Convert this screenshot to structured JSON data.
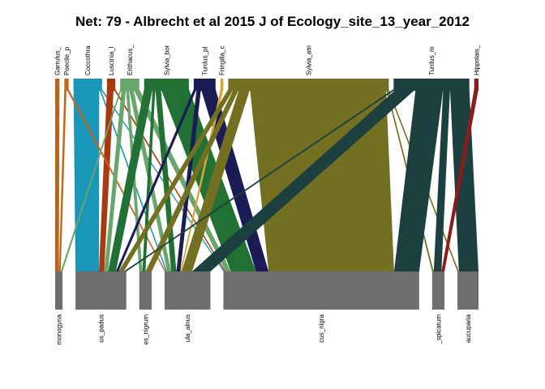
{
  "title": "Net: 79 - Albrecht et al 2015 J of Ecology_site_13_year_2012",
  "higher": [
    {
      "label": "Garrulus_",
      "color": "#b5651d"
    },
    {
      "label": "Poecile_p",
      "color": "#c8661a"
    },
    {
      "label": "Coccothra",
      "color": "#1a96b9"
    },
    {
      "label": "Luscinia_l",
      "color": "#a83a12"
    },
    {
      "label": "Erithacus_",
      "color": "#6aa56b"
    },
    {
      "label": "Sylvia_bor",
      "color": "#217034"
    },
    {
      "label": "Turdus_pl",
      "color": "#1b1b55"
    },
    {
      "label": "Fringilla_c",
      "color": "#d4a637"
    },
    {
      "label": "Sylvia_atri",
      "color": "#737021"
    },
    {
      "label": "Turdus_m",
      "color": "#1c403f"
    },
    {
      "label": "Hippolais_",
      "color": "#8b1c1c"
    }
  ],
  "lower": [
    {
      "label": "monogyna"
    },
    {
      "label": "us_padus"
    },
    {
      "label": "es_nigrum"
    },
    {
      "label": "ula_alnus"
    },
    {
      "label": "cus_nigra"
    },
    {
      "label": "_spicatum"
    },
    {
      "label": "aucuparia"
    }
  ],
  "lower_box_color": "#6e6e6e",
  "links": [
    {
      "from": "Coccothra",
      "to": "us_padus",
      "weight": 18
    },
    {
      "from": "Coccothra",
      "to": "ula_alnus",
      "weight": 1
    },
    {
      "from": "Coccothra",
      "to": "cus_nigra",
      "weight": 1
    },
    {
      "from": "Luscinia_l",
      "to": "us_padus",
      "weight": 4
    },
    {
      "from": "Luscinia_l",
      "to": "cus_nigra",
      "weight": 1
    },
    {
      "from": "Garrulus_",
      "to": "monogyna",
      "weight": 2
    },
    {
      "from": "Poecile_p",
      "to": "monogyna",
      "weight": 1
    },
    {
      "from": "Poecile_p",
      "to": "ula_alnus",
      "weight": 1
    },
    {
      "from": "Erithacus_",
      "to": "monogyna",
      "weight": 1
    },
    {
      "from": "Erithacus_",
      "to": "us_padus",
      "weight": 3
    },
    {
      "from": "Erithacus_",
      "to": "es_nigrum",
      "weight": 2
    },
    {
      "from": "Erithacus_",
      "to": "ula_alnus",
      "weight": 3
    },
    {
      "from": "Erithacus_",
      "to": "cus_nigra",
      "weight": 4
    },
    {
      "from": "Sylvia_bor",
      "to": "us_padus",
      "weight": 6
    },
    {
      "from": "Sylvia_bor",
      "to": "es_nigrum",
      "weight": 2
    },
    {
      "from": "Sylvia_bor",
      "to": "ula_alnus",
      "weight": 4
    },
    {
      "from": "Sylvia_bor",
      "to": "cus_nigra",
      "weight": 20
    },
    {
      "from": "Turdus_pl",
      "to": "us_padus",
      "weight": 2
    },
    {
      "from": "Turdus_pl",
      "to": "ula_alnus",
      "weight": 3
    },
    {
      "from": "Turdus_pl",
      "to": "cus_nigra",
      "weight": 10
    },
    {
      "from": "Fringilla_c",
      "to": "ula_alnus",
      "weight": 1
    },
    {
      "from": "Sylvia_atri",
      "to": "us_padus",
      "weight": 4
    },
    {
      "from": "Sylvia_atri",
      "to": "es_nigrum",
      "weight": 4
    },
    {
      "from": "Sylvia_atri",
      "to": "ula_alnus",
      "weight": 8
    },
    {
      "from": "Sylvia_atri",
      "to": "cus_nigra",
      "weight": 100
    },
    {
      "from": "Sylvia_atri",
      "to": "_spicatum",
      "weight": 1
    },
    {
      "from": "Sylvia_atri",
      "to": "aucuparia",
      "weight": 1
    },
    {
      "from": "Turdus_m",
      "to": "us_padus",
      "weight": 2
    },
    {
      "from": "Turdus_m",
      "to": "ula_alnus",
      "weight": 14
    },
    {
      "from": "Turdus_m",
      "to": "cus_nigra",
      "weight": 20
    },
    {
      "from": "Turdus_m",
      "to": "_spicatum",
      "weight": 5
    },
    {
      "from": "Turdus_m",
      "to": "aucuparia",
      "weight": 14
    },
    {
      "from": "Hippolais_",
      "to": "_spicatum",
      "weight": 2
    }
  ]
}
